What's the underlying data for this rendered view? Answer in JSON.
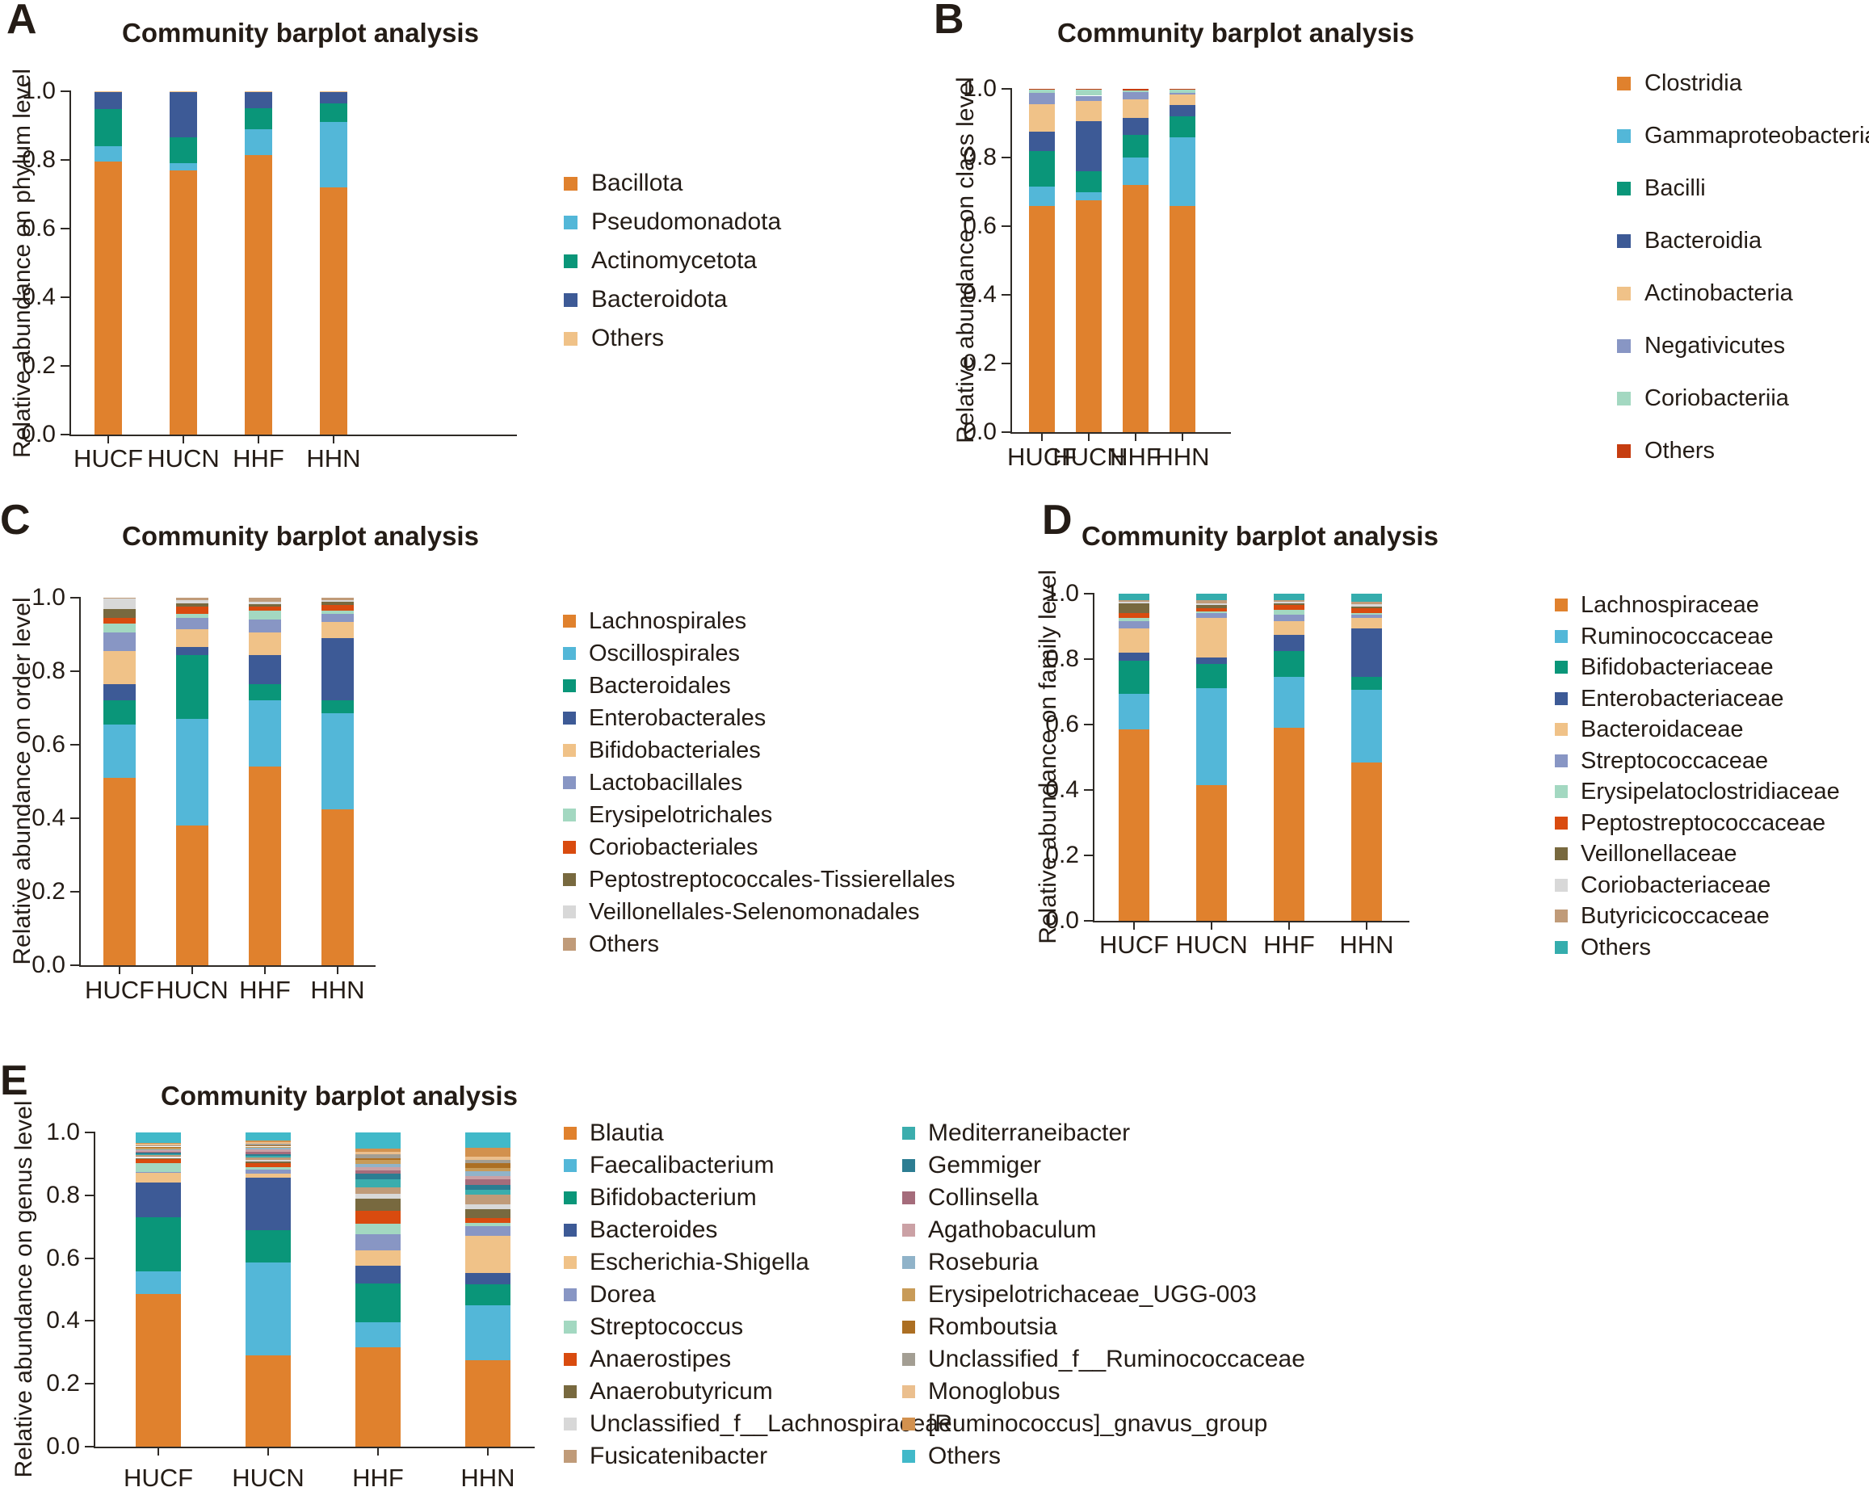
{
  "figure_title": "Community barplot analysis figure, five stacked-bar panels A-E",
  "chart_data": [
    {
      "panel": "A",
      "type": "bar",
      "subtype": "stacked",
      "title": "Community barplot analysis",
      "ylabel": "Relative abundance on phylum level",
      "ylim": [
        0.0,
        1.0
      ],
      "yticks": [
        "0.0",
        "0.2",
        "0.4",
        "0.6",
        "0.8",
        "1.0"
      ],
      "categories": [
        "HUCF",
        "HUCN",
        "HHF",
        "HHN"
      ],
      "legend_position": "right",
      "series": [
        {
          "name": "Bacillota",
          "color": "#E0812D",
          "values": [
            0.795,
            0.77,
            0.815,
            0.72
          ]
        },
        {
          "name": "Pseudomonadota",
          "color": "#53B7D8",
          "values": [
            0.045,
            0.02,
            0.075,
            0.19
          ]
        },
        {
          "name": "Actinomycetota",
          "color": "#0A9679",
          "values": [
            0.108,
            0.075,
            0.06,
            0.055
          ]
        },
        {
          "name": "Bacteroidota",
          "color": "#3D5A96",
          "values": [
            0.05,
            0.133,
            0.048,
            0.033
          ]
        },
        {
          "name": "Others",
          "color": "#F0C288",
          "values": [
            0.002,
            0.002,
            0.002,
            0.002
          ]
        }
      ]
    },
    {
      "panel": "B",
      "type": "bar",
      "subtype": "stacked",
      "title": "Community barplot analysis",
      "ylabel": "Relative abundance on class level",
      "ylim": [
        0.0,
        1.0
      ],
      "yticks": [
        "0.0",
        "0.2",
        "0.4",
        "0.6",
        "0.8",
        "1.0"
      ],
      "categories": [
        "HUCF",
        "HUCN",
        "HHF",
        "HHN"
      ],
      "legend_position": "right",
      "series": [
        {
          "name": "Clostridia",
          "color": "#E0812D",
          "values": [
            0.66,
            0.675,
            0.72,
            0.66
          ]
        },
        {
          "name": "Gammaproteobacteria",
          "color": "#53B7D8",
          "values": [
            0.055,
            0.025,
            0.08,
            0.2
          ]
        },
        {
          "name": "Bacilli",
          "color": "#0A9679",
          "values": [
            0.105,
            0.06,
            0.065,
            0.06
          ]
        },
        {
          "name": "Bacteroidia",
          "color": "#3D5A96",
          "values": [
            0.055,
            0.145,
            0.05,
            0.033
          ]
        },
        {
          "name": "Actinobacteria",
          "color": "#F0C288",
          "values": [
            0.08,
            0.06,
            0.055,
            0.03
          ]
        },
        {
          "name": "Negativicutes",
          "color": "#8896C4",
          "values": [
            0.033,
            0.015,
            0.02,
            0.005
          ]
        },
        {
          "name": "Coriobacteriia",
          "color": "#A3D8C1",
          "values": [
            0.01,
            0.018,
            0.005,
            0.01
          ]
        },
        {
          "name": "Others",
          "color": "#C63D10",
          "values": [
            0.002,
            0.002,
            0.005,
            0.002
          ]
        }
      ]
    },
    {
      "panel": "C",
      "type": "bar",
      "subtype": "stacked",
      "title": "Community barplot analysis",
      "ylabel": "Relative abundance on order level",
      "ylim": [
        0.0,
        1.0
      ],
      "yticks": [
        "0.0",
        "0.2",
        "0.4",
        "0.6",
        "0.8",
        "1.0"
      ],
      "categories": [
        "HUCF",
        "HUCN",
        "HHF",
        "HHN"
      ],
      "legend_position": "right",
      "series": [
        {
          "name": "Lachnospirales",
          "color": "#E0812D",
          "values": [
            0.51,
            0.38,
            0.54,
            0.425
          ]
        },
        {
          "name": "Oscillospirales",
          "color": "#53B7D8",
          "values": [
            0.145,
            0.29,
            0.18,
            0.26
          ]
        },
        {
          "name": "Bacteroidales",
          "color": "#0A9679",
          "values": [
            0.065,
            0.175,
            0.045,
            0.035
          ]
        },
        {
          "name": "Enterobacterales",
          "color": "#3D5A96",
          "values": [
            0.045,
            0.02,
            0.08,
            0.17
          ]
        },
        {
          "name": "Bifidobacteriales",
          "color": "#F0C288",
          "values": [
            0.09,
            0.05,
            0.06,
            0.045
          ]
        },
        {
          "name": "Lactobacillales",
          "color": "#8896C4",
          "values": [
            0.05,
            0.03,
            0.035,
            0.02
          ]
        },
        {
          "name": "Erysipelotrichales",
          "color": "#A3D8C1",
          "values": [
            0.025,
            0.01,
            0.025,
            0.01
          ]
        },
        {
          "name": "Coriobacteriales",
          "color": "#D94B0F",
          "values": [
            0.015,
            0.02,
            0.01,
            0.015
          ]
        },
        {
          "name": "Peptostreptococcales-Tissierellales",
          "color": "#78693F",
          "values": [
            0.025,
            0.01,
            0.008,
            0.008
          ]
        },
        {
          "name": "Veillonellales-Selenomonadales",
          "color": "#D8D8D8",
          "values": [
            0.028,
            0.008,
            0.007,
            0.005
          ]
        },
        {
          "name": "Others",
          "color": "#C09B79",
          "values": [
            0.002,
            0.007,
            0.01,
            0.007
          ]
        }
      ]
    },
    {
      "panel": "D",
      "type": "bar",
      "subtype": "stacked",
      "title": "Community barplot analysis",
      "ylabel": "Relative abundance on family level",
      "ylim": [
        0.0,
        1.0
      ],
      "yticks": [
        "0.0",
        "0.2",
        "0.4",
        "0.6",
        "0.8",
        "1.0"
      ],
      "categories": [
        "HUCF",
        "HUCN",
        "HHF",
        "HHN"
      ],
      "legend_position": "right",
      "series": [
        {
          "name": "Lachnospiraceae",
          "color": "#E0812D",
          "values": [
            0.585,
            0.415,
            0.59,
            0.485
          ]
        },
        {
          "name": "Ruminococcaceae",
          "color": "#53B7D8",
          "values": [
            0.11,
            0.295,
            0.155,
            0.22
          ]
        },
        {
          "name": "Bifidobacteriaceae",
          "color": "#0A9679",
          "values": [
            0.1,
            0.075,
            0.08,
            0.04
          ]
        },
        {
          "name": "Enterobacteriaceae",
          "color": "#3D5A96",
          "values": [
            0.025,
            0.02,
            0.05,
            0.15
          ]
        },
        {
          "name": "Bacteroidaceae",
          "color": "#F0C288",
          "values": [
            0.075,
            0.12,
            0.04,
            0.03
          ]
        },
        {
          "name": "Streptococcaceae",
          "color": "#8896C4",
          "values": [
            0.02,
            0.015,
            0.02,
            0.01
          ]
        },
        {
          "name": "Erysipelatoclostridiaceae",
          "color": "#A3D8C1",
          "values": [
            0.01,
            0.005,
            0.015,
            0.005
          ]
        },
        {
          "name": "Peptostreptococcaceae",
          "color": "#D94B0F",
          "values": [
            0.015,
            0.01,
            0.015,
            0.015
          ]
        },
        {
          "name": "Veillonellaceae",
          "color": "#78693F",
          "values": [
            0.03,
            0.01,
            0.005,
            0.005
          ]
        },
        {
          "name": "Coriobacteriaceae",
          "color": "#D8D8D8",
          "values": [
            0.005,
            0.005,
            0.005,
            0.008
          ]
        },
        {
          "name": "Butyricicoccaceae",
          "color": "#C09B79",
          "values": [
            0.005,
            0.01,
            0.005,
            0.007
          ]
        },
        {
          "name": "Others",
          "color": "#35ADAD",
          "values": [
            0.02,
            0.02,
            0.02,
            0.025
          ]
        }
      ]
    },
    {
      "panel": "E",
      "type": "bar",
      "subtype": "stacked",
      "title": "Community barplot analysis",
      "ylabel": "Relative abundance on genus level",
      "ylim": [
        0.0,
        1.0
      ],
      "yticks": [
        "0.0",
        "0.2",
        "0.4",
        "0.6",
        "0.8",
        "1.0"
      ],
      "categories": [
        "HUCF",
        "HUCN",
        "HHF",
        "HHN"
      ],
      "legend_position": "right-two-columns",
      "series": [
        {
          "name": "Blautia",
          "color": "#E0812D",
          "values": [
            0.485,
            0.29,
            0.315,
            0.275
          ]
        },
        {
          "name": "Faecalibacterium",
          "color": "#53B7D8",
          "values": [
            0.073,
            0.295,
            0.08,
            0.175
          ]
        },
        {
          "name": "Bifidobacterium",
          "color": "#0A9679",
          "values": [
            0.171,
            0.105,
            0.125,
            0.067
          ]
        },
        {
          "name": "Bacteroides",
          "color": "#3D5A96",
          "values": [
            0.112,
            0.165,
            0.055,
            0.035
          ]
        },
        {
          "name": "Escherichia-Shigella",
          "color": "#F0C288",
          "values": [
            0.031,
            0.015,
            0.05,
            0.12
          ]
        },
        {
          "name": "Dorea",
          "color": "#8896C4",
          "values": [
            0.003,
            0.012,
            0.05,
            0.03
          ]
        },
        {
          "name": "Streptococcus",
          "color": "#A3D8C1",
          "values": [
            0.027,
            0.008,
            0.035,
            0.01
          ]
        },
        {
          "name": "Anaerostipes",
          "color": "#D94B0F",
          "values": [
            0.013,
            0.012,
            0.04,
            0.015
          ]
        },
        {
          "name": "Anaerobutyricum",
          "color": "#78693F",
          "values": [
            0.004,
            0.006,
            0.04,
            0.03
          ]
        },
        {
          "name": "Unclassified_f__Lachnospiraceae",
          "color": "#D8D8D8",
          "values": [
            0.004,
            0.005,
            0.015,
            0.015
          ]
        },
        {
          "name": "Fusicatenibacter",
          "color": "#C09B79",
          "values": [
            0.004,
            0.008,
            0.02,
            0.03
          ]
        },
        {
          "name": "Mediterraneibacter",
          "color": "#3BADAD",
          "values": [
            0.004,
            0.005,
            0.025,
            0.015
          ]
        },
        {
          "name": "Gemmiger",
          "color": "#2C7D92",
          "values": [
            0.004,
            0.005,
            0.018,
            0.015
          ]
        },
        {
          "name": "Collinsella",
          "color": "#A56C7B",
          "values": [
            0.004,
            0.008,
            0.012,
            0.02
          ]
        },
        {
          "name": "Agathobaculum",
          "color": "#CBA1A5",
          "values": [
            0.004,
            0.006,
            0.01,
            0.01
          ]
        },
        {
          "name": "Roseburia",
          "color": "#90B3C9",
          "values": [
            0.004,
            0.005,
            0.01,
            0.015
          ]
        },
        {
          "name": "Erysipelotrichaceae_UGG-003",
          "color": "#C89B58",
          "values": [
            0.004,
            0.005,
            0.012,
            0.01
          ]
        },
        {
          "name": "Romboutsia",
          "color": "#AC6F23",
          "values": [
            0.004,
            0.005,
            0.006,
            0.015
          ]
        },
        {
          "name": "Unclassified_f__Ruminococcaceae",
          "color": "#A39E93",
          "values": [
            0.004,
            0.005,
            0.012,
            0.01
          ]
        },
        {
          "name": "Monoglobus",
          "color": "#EBBF8E",
          "values": [
            0.004,
            0.005,
            0.008,
            0.01
          ]
        },
        {
          "name": "[Ruminococcus]_gnavus_group",
          "color": "#D2914E",
          "values": [
            0.004,
            0.005,
            0.01,
            0.028
          ]
        },
        {
          "name": "Others",
          "color": "#41B9C9",
          "values": [
            0.033,
            0.025,
            0.052,
            0.05
          ]
        }
      ]
    }
  ]
}
